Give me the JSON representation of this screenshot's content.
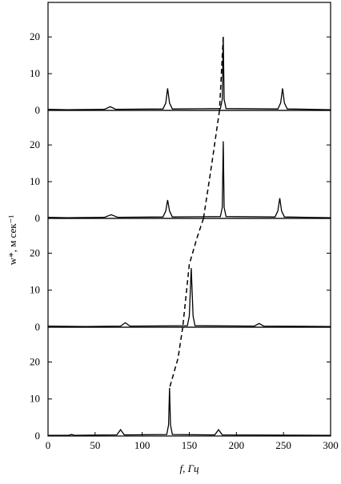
{
  "chart_data": [
    {
      "type": "line",
      "ylim": [
        0,
        29.4
      ],
      "yticks": [
        0,
        10,
        20
      ],
      "xlim": [
        0,
        300
      ],
      "series": [
        {
          "color": "#000000",
          "x": [
            0,
            20,
            60,
            66,
            72,
            122,
            125,
            127,
            129,
            132,
            183,
            185,
            186,
            187,
            189,
            244,
            247,
            249,
            251,
            254,
            300
          ],
          "values": [
            0.3,
            0.2,
            0.3,
            1,
            0.3,
            0.4,
            2,
            6,
            2,
            0.4,
            0.5,
            3,
            20,
            3,
            0.5,
            0.4,
            2,
            6,
            2,
            0.4,
            0.2
          ]
        },
        {
          "color": "#000000",
          "dash": true,
          "x": [
            186,
            182
          ],
          "values": [
            20,
            0
          ]
        }
      ]
    },
    {
      "type": "line",
      "ylim": [
        0,
        29.4
      ],
      "yticks": [
        0,
        10,
        20
      ],
      "xlim": [
        0,
        300
      ],
      "series": [
        {
          "color": "#000000",
          "x": [
            0,
            20,
            60,
            67,
            74,
            122,
            125,
            127,
            129,
            132,
            183,
            185,
            186,
            187,
            189,
            241,
            244,
            246,
            248,
            251,
            300
          ],
          "values": [
            0.3,
            0.2,
            0.3,
            1,
            0.3,
            0.4,
            2,
            5,
            2,
            0.4,
            0.5,
            3,
            21,
            3,
            0.5,
            0.4,
            2,
            5.5,
            2,
            0.4,
            0.2
          ]
        },
        {
          "color": "#000000",
          "dash": true,
          "x": [
            182,
            174,
            165
          ],
          "values": [
            29.4,
            15,
            0
          ]
        }
      ]
    },
    {
      "type": "line",
      "ylim": [
        0,
        29.4
      ],
      "yticks": [
        0,
        10,
        20
      ],
      "xlim": [
        0,
        300
      ],
      "series": [
        {
          "color": "#000000",
          "x": [
            0,
            40,
            77,
            82,
            87,
            148,
            150,
            152,
            154,
            156,
            219,
            224,
            229,
            300
          ],
          "values": [
            0.3,
            0.2,
            0.3,
            1.2,
            0.3,
            0.4,
            3,
            16,
            3,
            0.4,
            0.3,
            1,
            0.3,
            0.2
          ]
        },
        {
          "color": "#000000",
          "dash": true,
          "x": [
            165,
            158,
            150,
            143
          ],
          "values": [
            29.4,
            24,
            17,
            0
          ]
        }
      ]
    },
    {
      "type": "line",
      "ylim": [
        0,
        29.4
      ],
      "yticks": [
        0,
        10,
        20
      ],
      "xlim": [
        0,
        300
      ],
      "xticks": [
        0,
        50,
        100,
        150,
        200,
        250,
        300
      ],
      "xlabel": "f, Гц",
      "ylabel": "w*, м сек⁻¹",
      "series": [
        {
          "color": "#000000",
          "x": [
            0,
            22,
            25,
            28,
            73,
            77,
            81,
            126,
            128,
            129,
            130,
            132,
            177,
            181,
            185,
            300
          ],
          "values": [
            0.2,
            0.2,
            0.4,
            0.2,
            0.3,
            1.7,
            0.3,
            0.4,
            3,
            13,
            3,
            0.4,
            0.3,
            1.7,
            0.3,
            0.2
          ]
        },
        {
          "color": "#000000",
          "dash": true,
          "x": [
            143,
            138,
            129
          ],
          "values": [
            29.4,
            21,
            13
          ]
        }
      ]
    }
  ]
}
